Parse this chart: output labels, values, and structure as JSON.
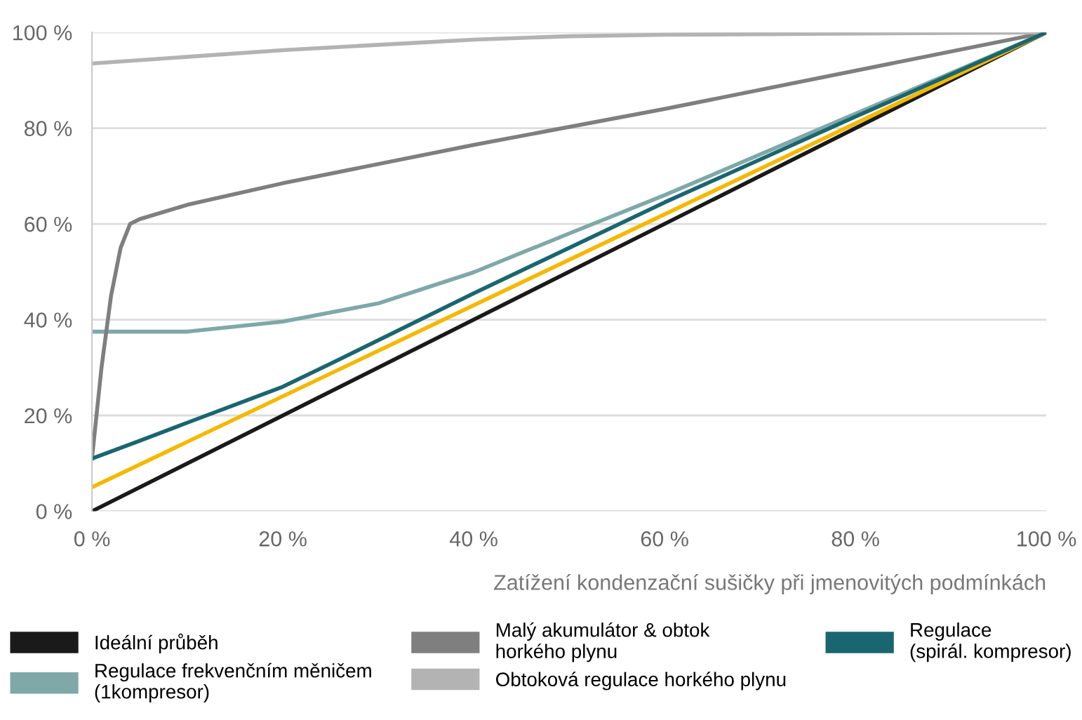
{
  "chart_data": {
    "type": "line",
    "xlabel": "Zatížení kondenzační sušičky při jmenovitých podmínkách",
    "xlim": [
      0,
      100
    ],
    "ylim": [
      0,
      100
    ],
    "xticks": [
      {
        "value": 0,
        "label": "0 %"
      },
      {
        "value": 20,
        "label": "20 %"
      },
      {
        "value": 40,
        "label": "40 %"
      },
      {
        "value": 60,
        "label": "60 %"
      },
      {
        "value": 80,
        "label": "80 %"
      },
      {
        "value": 100,
        "label": "100 %"
      }
    ],
    "yticks": [
      {
        "value": 0,
        "label": "0 %"
      },
      {
        "value": 20,
        "label": "20 %"
      },
      {
        "value": 40,
        "label": "40 %"
      },
      {
        "value": 60,
        "label": "60 %"
      },
      {
        "value": 80,
        "label": "80 %"
      },
      {
        "value": 100,
        "label": "100 %"
      }
    ],
    "grid": "y",
    "legend": "bottom",
    "marker": "none",
    "line_style": "solid",
    "series": [
      {
        "name": "Ideální průběh",
        "color": "#1a1a1a",
        "x": [
          0,
          100
        ],
        "values": [
          0,
          100
        ]
      },
      {
        "name": "Regulace frekvenčním měničem\n(1kompresor)",
        "color": "#7fa8a8",
        "x": [
          0,
          10,
          20,
          30,
          40,
          50,
          60,
          80,
          100
        ],
        "values": [
          37.5,
          37.5,
          39.6,
          43.4,
          49.9,
          58,
          66,
          83,
          100
        ]
      },
      {
        "name": "Malý akumulátor & obtok\nhorkého plynu",
        "color": "#7f7f7f",
        "x": [
          0,
          1,
          2,
          3,
          4,
          5,
          10,
          20,
          40,
          60,
          80,
          100
        ],
        "values": [
          11,
          30,
          45,
          55,
          60,
          61,
          64,
          68.5,
          76.5,
          84,
          92,
          100
        ]
      },
      {
        "color": "#f5b800",
        "x": [
          0,
          100
        ],
        "values": [
          5,
          100
        ]
      },
      {
        "name": "Obtoková regulace horkého plynu",
        "color": "#b3b3b3",
        "x": [
          0,
          20,
          40,
          50,
          60,
          100
        ],
        "values": [
          93.5,
          96.3,
          98.5,
          99.2,
          99.5,
          100
        ]
      },
      {
        "name": "Regulace\n(spirál. kompresor)",
        "color": "#1a6670",
        "x": [
          0,
          5,
          10,
          20,
          25,
          40,
          60,
          80,
          100
        ],
        "values": [
          11,
          14.7,
          18.5,
          26,
          30.8,
          45.5,
          64.5,
          82.4,
          100
        ]
      }
    ]
  }
}
